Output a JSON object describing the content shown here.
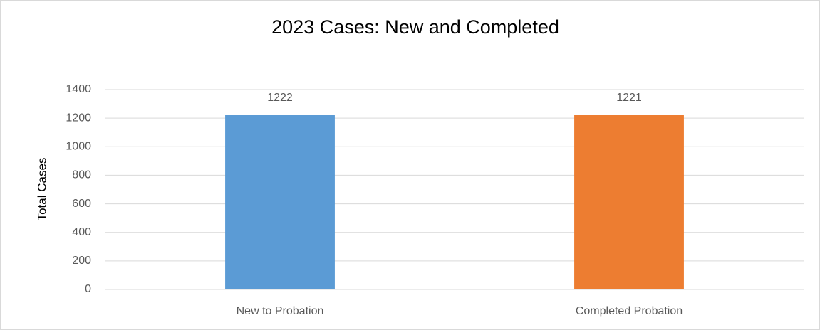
{
  "chart_data": {
    "type": "bar",
    "title": "2023 Cases: New and Completed",
    "y_label": "Total Cases",
    "categories": [
      "New to Probation",
      "Completed Probation"
    ],
    "values": [
      1222,
      1221
    ],
    "colors": [
      "#5b9bd5",
      "#ed7d31"
    ],
    "ylim": [
      0,
      1400
    ],
    "yticks": [
      0,
      200,
      400,
      600,
      800,
      1000,
      1200,
      1400
    ],
    "grid": true
  }
}
